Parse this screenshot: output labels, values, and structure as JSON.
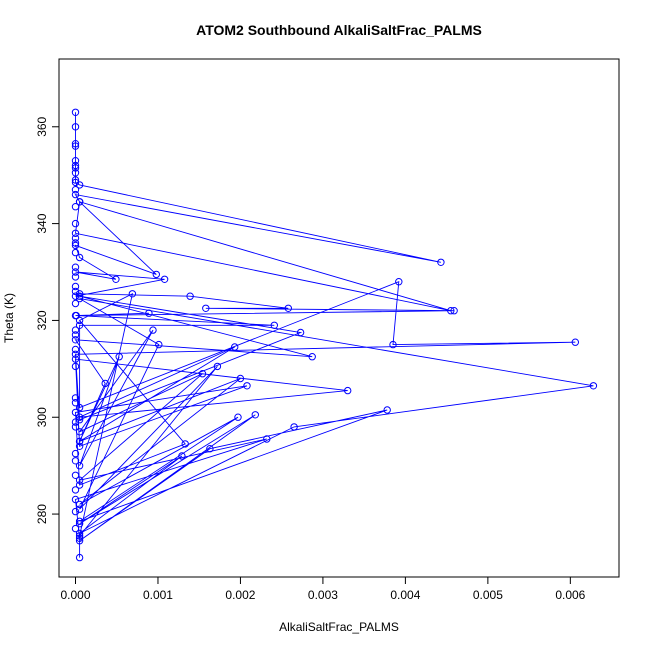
{
  "chart_data": {
    "type": "line",
    "title": "ATOM2 Southbound AlkaliSaltFrac_PALMS",
    "xlabel": "AlkaliSaltFrac_PALMS",
    "ylabel": "Theta (K)",
    "xlim": [
      -0.0002,
      0.00659
    ],
    "ylim": [
      267,
      374
    ],
    "xticks": [
      0.0,
      0.001,
      0.002,
      0.003,
      0.004,
      0.005,
      0.006
    ],
    "xtick_labels": [
      "0.000",
      "0.001",
      "0.002",
      "0.003",
      "0.004",
      "0.005",
      "0.006"
    ],
    "yticks": [
      280,
      300,
      320,
      340,
      360
    ],
    "ytick_labels": [
      "280",
      "300",
      "320",
      "340",
      "360"
    ],
    "grid": false,
    "marker": "open-circle",
    "series": [
      {
        "color": "#0000ff",
        "points": [
          [
            0.0,
            363.0
          ],
          [
            0.0,
            356.5
          ],
          [
            0.0,
            356.0
          ],
          [
            0.0,
            353.0
          ],
          [
            0.0,
            351.5
          ],
          [
            0.0,
            350.5
          ],
          [
            0.0,
            348.5
          ],
          [
            5e-05,
            348.0
          ],
          [
            0.00443,
            332.0
          ],
          [
            0.0,
            346.0
          ],
          [
            5e-05,
            344.5
          ],
          [
            0.00455,
            322.0
          ],
          [
            0.0,
            338.0
          ],
          [
            5e-05,
            344.5
          ],
          [
            0.00098,
            329.5
          ],
          [
            0.0,
            335.5
          ],
          [
            5e-05,
            333.0
          ],
          [
            0.00049,
            328.5
          ],
          [
            0.0,
            330.0
          ],
          [
            0.00108,
            328.5
          ],
          [
            0.0,
            325.0
          ],
          [
            5e-05,
            325.5
          ],
          [
            0.00139,
            325.0
          ],
          [
            0.00258,
            322.5
          ],
          [
            0.00158,
            322.5
          ],
          [
            0.00459,
            322.0
          ],
          [
            0.0,
            321.0
          ],
          [
            0.00089,
            321.5
          ],
          [
            1e-05,
            321.0
          ],
          [
            0.00241,
            319.0
          ],
          [
            5e-05,
            319.0
          ],
          [
            5e-05,
            302.0
          ],
          [
            0.00392,
            328.0
          ],
          [
            0.00385,
            315.0
          ],
          [
            0.00606,
            315.5
          ],
          [
            0.0,
            313.0
          ],
          [
            5e-05,
            299.5
          ],
          [
            0.00273,
            317.5
          ],
          [
            5e-05,
            325.0
          ],
          [
            0.00287,
            312.5
          ],
          [
            0.0,
            316.0
          ],
          [
            0.00036,
            307.0
          ],
          [
            5e-05,
            295.0
          ],
          [
            0.00193,
            314.5
          ],
          [
            5e-05,
            300.0
          ],
          [
            0.0033,
            305.5
          ],
          [
            0.0,
            312.0
          ],
          [
            5e-05,
            294.0
          ],
          [
            0.00208,
            306.5
          ],
          [
            0.0,
            301.0
          ],
          [
            5e-05,
            286.0
          ],
          [
            0.00133,
            294.5
          ],
          [
            5e-05,
            320.0
          ],
          [
            0.00069,
            325.5
          ],
          [
            5e-05,
            275.5
          ],
          [
            0.00172,
            310.5
          ],
          [
            5e-05,
            281.0
          ],
          [
            0.00101,
            315.0
          ],
          [
            5e-05,
            324.5
          ],
          [
            0.00628,
            306.5
          ],
          [
            0.00265,
            298.0
          ],
          [
            5e-05,
            276.0
          ],
          [
            0.00129,
            292.0
          ],
          [
            5e-05,
            278.0
          ],
          [
            0.00218,
            300.5
          ],
          [
            5e-05,
            274.5
          ],
          [
            0.00163,
            293.5
          ],
          [
            0.00378,
            301.5
          ],
          [
            5e-05,
            278.5
          ],
          [
            0.00197,
            300.0
          ],
          [
            5e-05,
            282.0
          ],
          [
            0.002,
            308.0
          ],
          [
            5e-05,
            295.0
          ],
          [
            0.00053,
            312.5
          ],
          [
            5e-05,
            290.0
          ],
          [
            0.00094,
            318.0
          ],
          [
            5e-05,
            297.0
          ],
          [
            0.00154,
            309.0
          ],
          [
            5e-05,
            287.0
          ],
          [
            0.00232,
            295.5
          ],
          [
            0.0,
            283.0
          ],
          [
            5e-05,
            275.0
          ],
          [
            5e-05,
            271.0
          ]
        ],
        "extra_points": [
          [
            0.0,
            360.0
          ],
          [
            0.0,
            352.0
          ],
          [
            0.0,
            349.0
          ],
          [
            0.0,
            347.0
          ],
          [
            0.0,
            343.5
          ],
          [
            0.0,
            340.0
          ],
          [
            0.0,
            337.0
          ],
          [
            0.0,
            336.0
          ],
          [
            0.0,
            334.0
          ],
          [
            0.0,
            331.0
          ],
          [
            0.0,
            329.0
          ],
          [
            0.0,
            327.0
          ],
          [
            0.0,
            326.0
          ],
          [
            0.0,
            323.5
          ],
          [
            0.0,
            318.0
          ],
          [
            0.0,
            317.0
          ],
          [
            0.0,
            314.0
          ],
          [
            0.0,
            310.5
          ],
          [
            0.0,
            304.0
          ],
          [
            0.0,
            303.0
          ],
          [
            0.0,
            299.0
          ],
          [
            0.0,
            298.0
          ],
          [
            0.0,
            292.5
          ],
          [
            0.0,
            291.0
          ],
          [
            0.0,
            288.0
          ],
          [
            0.0,
            285.0
          ],
          [
            0.0,
            280.5
          ],
          [
            0.0,
            277.0
          ]
        ]
      }
    ]
  }
}
